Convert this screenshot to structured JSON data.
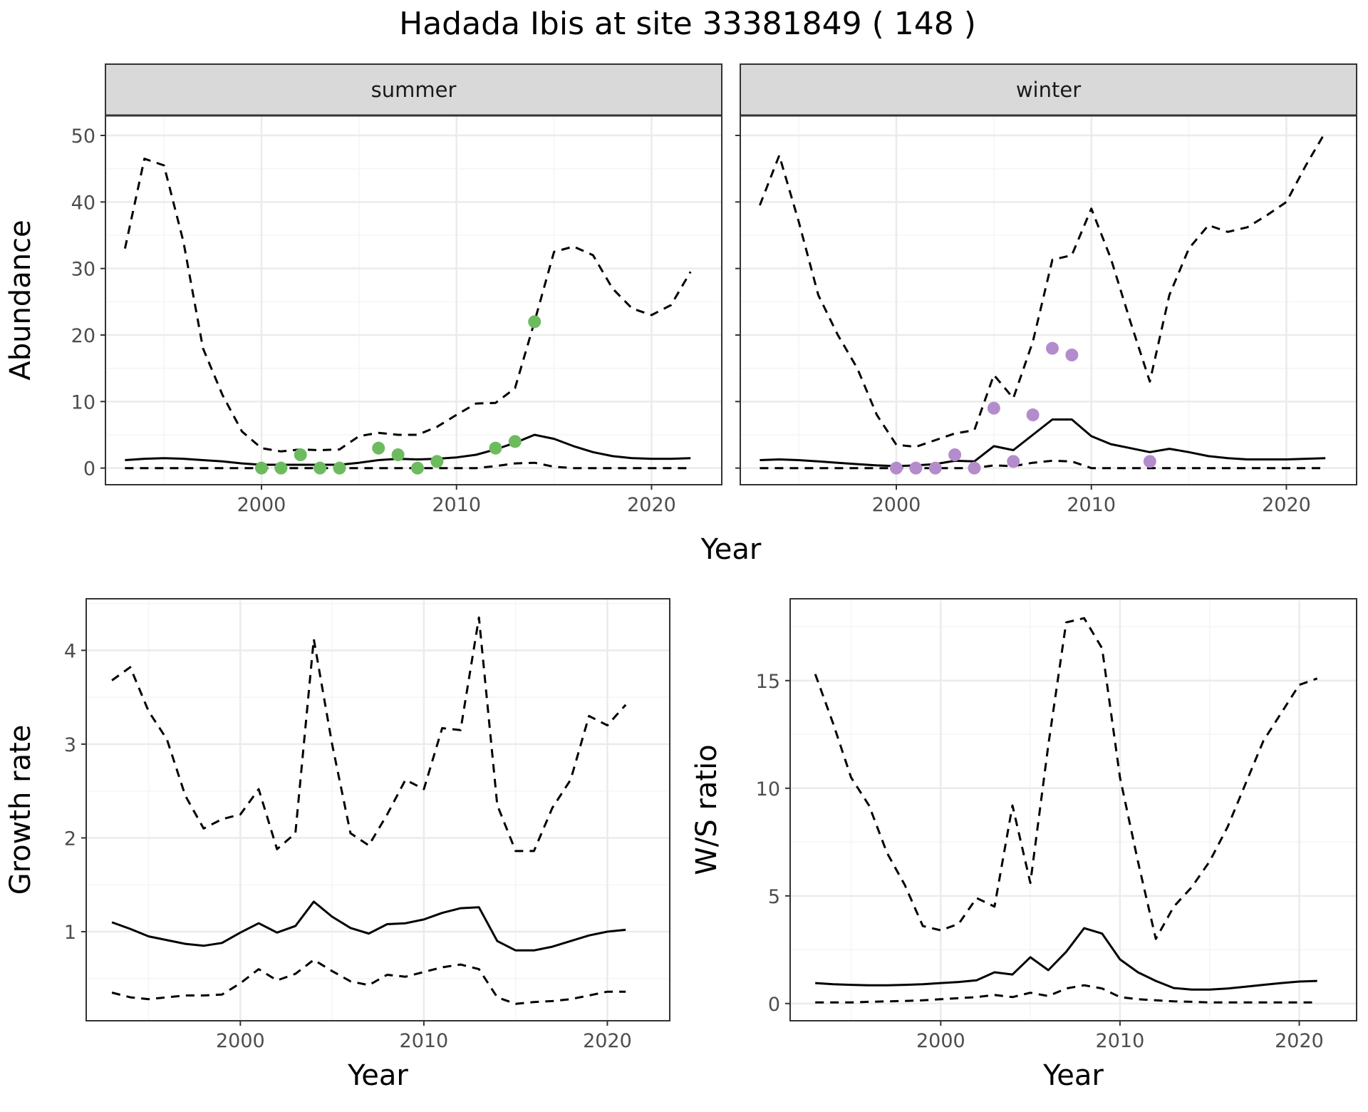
{
  "title": "Hadada Ibis at site 33381849 ( 148 )",
  "colors": {
    "summer_points": "#6dbb5f",
    "winter_points": "#b48ccc",
    "strip_background": "#d9d9d9",
    "grid_major": "#ebebeb",
    "grid_minor": "#f5f5f5",
    "line": "#000000"
  },
  "chart_data": [
    {
      "type": "line",
      "panel": "summer",
      "strip_label": "summer",
      "xlabel": "Year",
      "ylabel": "Abundance",
      "xlim": [
        1992,
        2023.6
      ],
      "ylim": [
        -2.5,
        53
      ],
      "xticks": [
        2000,
        2010,
        2020
      ],
      "yticks": [
        0,
        10,
        20,
        30,
        40,
        50
      ],
      "series": [
        {
          "style": "solid",
          "x": [
            1993,
            1994,
            1995,
            1996,
            1997,
            1998,
            1999,
            2000,
            2001,
            2002,
            2003,
            2004,
            2005,
            2006,
            2007,
            2008,
            2009,
            2010,
            2011,
            2012,
            2013,
            2014,
            2015,
            2016,
            2017,
            2018,
            2019,
            2020,
            2021,
            2022
          ],
          "y": [
            1.2,
            1.4,
            1.5,
            1.4,
            1.2,
            1.0,
            0.7,
            0.5,
            0.5,
            0.5,
            0.5,
            0.5,
            0.8,
            1.2,
            1.4,
            1.3,
            1.4,
            1.6,
            2.0,
            2.8,
            3.8,
            5.0,
            4.4,
            3.3,
            2.4,
            1.8,
            1.5,
            1.4,
            1.4,
            1.5
          ]
        },
        {
          "style": "dashed",
          "x": [
            1993,
            1994,
            1995,
            1996,
            1997,
            1998,
            1999,
            2000,
            2001,
            2002,
            2003,
            2004,
            2005,
            2006,
            2007,
            2008,
            2009,
            2010,
            2011,
            2012,
            2013,
            2014,
            2015,
            2016,
            2017,
            2018,
            2019,
            2020,
            2021,
            2022
          ],
          "y": [
            33,
            46.5,
            45.5,
            34,
            18,
            11,
            5.5,
            3,
            2.5,
            2.8,
            2.7,
            2.8,
            4.8,
            5.3,
            5,
            5,
            6.2,
            8,
            9.7,
            9.8,
            12,
            22,
            32.5,
            33.3,
            32,
            27,
            24,
            23,
            24.5,
            29.5
          ]
        },
        {
          "style": "dashed",
          "x": [
            1993,
            1994,
            1995,
            1996,
            1997,
            1998,
            1999,
            2000,
            2001,
            2002,
            2003,
            2004,
            2005,
            2006,
            2007,
            2008,
            2009,
            2010,
            2011,
            2012,
            2013,
            2014,
            2015,
            2016,
            2017,
            2018,
            2019,
            2020,
            2021,
            2022
          ],
          "y": [
            0,
            0,
            0,
            0,
            0,
            0,
            0,
            0,
            0,
            0,
            0,
            0,
            0,
            0,
            0,
            0,
            0,
            0,
            0,
            0.3,
            0.7,
            0.8,
            0.2,
            0,
            0,
            0,
            0,
            0,
            0,
            0
          ]
        }
      ],
      "points": {
        "x": [
          2000,
          2001,
          2002,
          2003,
          2004,
          2006,
          2007,
          2008,
          2009,
          2012,
          2013,
          2014
        ],
        "y": [
          0,
          0,
          2,
          0,
          0,
          3,
          2,
          0,
          1,
          3,
          4,
          22
        ]
      }
    },
    {
      "type": "line",
      "panel": "winter",
      "strip_label": "winter",
      "xlabel": "Year",
      "ylabel": "Abundance",
      "xlim": [
        1992,
        2023.6
      ],
      "ylim": [
        -2.5,
        53
      ],
      "xticks": [
        2000,
        2010,
        2020
      ],
      "yticks": [
        0,
        10,
        20,
        30,
        40,
        50
      ],
      "series": [
        {
          "style": "solid",
          "x": [
            1993,
            1994,
            1995,
            1996,
            1997,
            1998,
            1999,
            2000,
            2001,
            2002,
            2003,
            2004,
            2005,
            2006,
            2007,
            2008,
            2009,
            2010,
            2011,
            2012,
            2013,
            2014,
            2015,
            2016,
            2017,
            2018,
            2019,
            2020,
            2021,
            2022
          ],
          "y": [
            1.2,
            1.3,
            1.2,
            1.0,
            0.8,
            0.6,
            0.4,
            0.3,
            0.4,
            0.6,
            1.1,
            1.0,
            3.3,
            2.7,
            5,
            7.3,
            7.3,
            4.8,
            3.6,
            3.0,
            2.4,
            2.9,
            2.4,
            1.8,
            1.5,
            1.3,
            1.3,
            1.3,
            1.4,
            1.5
          ]
        },
        {
          "style": "dashed",
          "x": [
            1993,
            1994,
            1995,
            1996,
            1997,
            1998,
            1999,
            2000,
            2001,
            2002,
            2003,
            2004,
            2005,
            2006,
            2007,
            2008,
            2009,
            2010,
            2011,
            2012,
            2013,
            2014,
            2015,
            2016,
            2017,
            2018,
            2019,
            2020,
            2021,
            2022
          ],
          "y": [
            39.5,
            47,
            37,
            26,
            20,
            15,
            8,
            3.5,
            3.2,
            4.2,
            5.2,
            5.7,
            14,
            10.5,
            19,
            31.3,
            32,
            39,
            31.5,
            22,
            13,
            26,
            33,
            36.5,
            35.5,
            36.2,
            38,
            40,
            45.5,
            50.5
          ]
        },
        {
          "style": "dashed",
          "x": [
            1993,
            1994,
            1995,
            1996,
            1997,
            1998,
            1999,
            2000,
            2001,
            2002,
            2003,
            2004,
            2005,
            2006,
            2007,
            2008,
            2009,
            2010,
            2011,
            2012,
            2013,
            2014,
            2015,
            2016,
            2017,
            2018,
            2019,
            2020,
            2021,
            2022
          ],
          "y": [
            0,
            0,
            0,
            0,
            0,
            0,
            0,
            0,
            0,
            0,
            0,
            0,
            0.4,
            0.3,
            0.8,
            1.1,
            1.0,
            0,
            0,
            0,
            0,
            0,
            0,
            0,
            0,
            0,
            0,
            0,
            0,
            0
          ]
        }
      ],
      "points": {
        "x": [
          2000,
          2001,
          2002,
          2003,
          2004,
          2005,
          2006,
          2007,
          2008,
          2009,
          2013
        ],
        "y": [
          0,
          0,
          0,
          2,
          0,
          9,
          1,
          8,
          18,
          17,
          1
        ]
      }
    },
    {
      "type": "line",
      "panel": "growth",
      "strip_label": "",
      "xlabel": "Year",
      "ylabel": "Growth rate",
      "xlim": [
        1991.6,
        2023.4
      ],
      "ylim": [
        0.05,
        4.55
      ],
      "xticks": [
        2000,
        2010,
        2020
      ],
      "yticks": [
        1,
        2,
        3,
        4
      ],
      "series": [
        {
          "style": "solid",
          "x": [
            1993,
            1994,
            1995,
            1996,
            1997,
            1998,
            1999,
            2000,
            2001,
            2002,
            2003,
            2004,
            2005,
            2006,
            2007,
            2008,
            2009,
            2010,
            2011,
            2012,
            2013,
            2014,
            2015,
            2016,
            2017,
            2018,
            2019,
            2020,
            2021
          ],
          "y": [
            1.1,
            1.03,
            0.95,
            0.91,
            0.87,
            0.85,
            0.88,
            0.99,
            1.09,
            0.99,
            1.06,
            1.32,
            1.16,
            1.04,
            0.98,
            1.08,
            1.09,
            1.13,
            1.2,
            1.25,
            1.26,
            0.9,
            0.8,
            0.8,
            0.84,
            0.9,
            0.96,
            1.0,
            1.02
          ]
        },
        {
          "style": "dashed",
          "x": [
            1993,
            1994,
            1995,
            1996,
            1997,
            1998,
            1999,
            2000,
            2001,
            2002,
            2003,
            2004,
            2005,
            2006,
            2007,
            2008,
            2009,
            2010,
            2011,
            2012,
            2013,
            2014,
            2015,
            2016,
            2017,
            2018,
            2019,
            2020,
            2021
          ],
          "y": [
            3.68,
            3.82,
            3.35,
            3.05,
            2.45,
            2.1,
            2.2,
            2.25,
            2.52,
            1.88,
            2.05,
            4.12,
            3.0,
            2.05,
            1.92,
            2.25,
            2.62,
            2.52,
            3.17,
            3.15,
            4.35,
            2.35,
            1.86,
            1.86,
            2.32,
            2.62,
            3.3,
            3.2,
            3.42
          ]
        },
        {
          "style": "dashed",
          "x": [
            1993,
            1994,
            1995,
            1996,
            1997,
            1998,
            1999,
            2000,
            2001,
            2002,
            2003,
            2004,
            2005,
            2006,
            2007,
            2008,
            2009,
            2010,
            2011,
            2012,
            2013,
            2014,
            2015,
            2016,
            2017,
            2018,
            2019,
            2020,
            2021
          ],
          "y": [
            0.35,
            0.3,
            0.28,
            0.3,
            0.32,
            0.32,
            0.33,
            0.45,
            0.6,
            0.48,
            0.55,
            0.7,
            0.58,
            0.47,
            0.43,
            0.54,
            0.52,
            0.57,
            0.62,
            0.65,
            0.6,
            0.3,
            0.23,
            0.25,
            0.26,
            0.28,
            0.32,
            0.36,
            0.36
          ]
        }
      ]
    },
    {
      "type": "line",
      "panel": "ws-ratio",
      "strip_label": "",
      "xlabel": "Year",
      "ylabel": "W/S ratio",
      "xlim": [
        1991.6,
        2023.2
      ],
      "ylim": [
        -0.8,
        18.8
      ],
      "xticks": [
        2000,
        2010,
        2020
      ],
      "yticks": [
        0,
        5,
        10,
        15
      ],
      "series": [
        {
          "style": "solid",
          "x": [
            1993,
            1994,
            1995,
            1996,
            1997,
            1998,
            1999,
            2000,
            2001,
            2002,
            2003,
            2004,
            2005,
            2006,
            2007,
            2008,
            2009,
            2010,
            2011,
            2012,
            2013,
            2014,
            2015,
            2016,
            2017,
            2018,
            2019,
            2020,
            2021
          ],
          "y": [
            0.95,
            0.9,
            0.87,
            0.85,
            0.85,
            0.87,
            0.9,
            0.95,
            1.0,
            1.08,
            1.45,
            1.35,
            2.15,
            1.55,
            2.4,
            3.5,
            3.25,
            2.05,
            1.45,
            1.05,
            0.72,
            0.65,
            0.65,
            0.7,
            0.78,
            0.87,
            0.95,
            1.02,
            1.05
          ]
        },
        {
          "style": "dashed",
          "x": [
            1993,
            1994,
            1995,
            1996,
            1997,
            1998,
            1999,
            2000,
            2001,
            2002,
            2003,
            2004,
            2005,
            2006,
            2007,
            2008,
            2009,
            2010,
            2011,
            2012,
            2013,
            2014,
            2015,
            2016,
            2017,
            2018,
            2019,
            2020,
            2021
          ],
          "y": [
            15.3,
            13,
            10.5,
            9.2,
            7,
            5.5,
            3.6,
            3.4,
            3.7,
            4.9,
            4.5,
            9.2,
            5.6,
            12,
            17.7,
            17.9,
            16.5,
            10.5,
            6.6,
            3.0,
            4.5,
            5.4,
            6.6,
            8.2,
            10.2,
            12.2,
            13.5,
            14.8,
            15.1
          ]
        },
        {
          "style": "dashed",
          "x": [
            1993,
            1994,
            1995,
            1996,
            1997,
            1998,
            1999,
            2000,
            2001,
            2002,
            2003,
            2004,
            2005,
            2006,
            2007,
            2008,
            2009,
            2010,
            2011,
            2012,
            2013,
            2014,
            2015,
            2016,
            2017,
            2018,
            2019,
            2020,
            2021
          ],
          "y": [
            0.05,
            0.05,
            0.05,
            0.08,
            0.1,
            0.12,
            0.15,
            0.2,
            0.25,
            0.3,
            0.4,
            0.3,
            0.5,
            0.35,
            0.7,
            0.85,
            0.7,
            0.3,
            0.2,
            0.15,
            0.1,
            0.08,
            0.05,
            0.05,
            0.05,
            0.05,
            0.05,
            0.05,
            0.05
          ]
        }
      ]
    }
  ]
}
